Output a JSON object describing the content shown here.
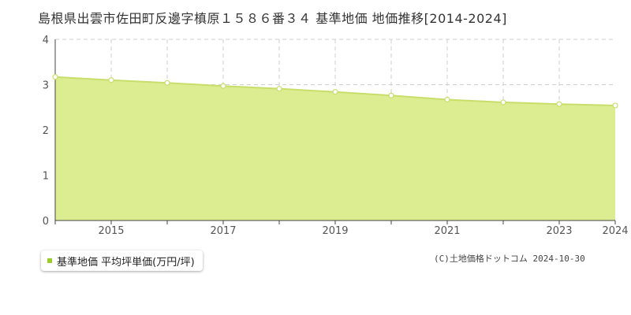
{
  "title": "島根県出雲市佐田町反邊字槙原１５８６番３４ 基準地価 地価推移[2014-2024]",
  "copyright": "(C)土地価格ドットコム 2024-10-30",
  "legend": {
    "label": "基準地価 平均坪単価(万円/坪)"
  },
  "colors": {
    "fill": "#dcec91",
    "line": "#c8de6b",
    "marker": "#9bcc2c",
    "grid": "#cfcfcf"
  },
  "chart_data": {
    "type": "area",
    "title": "島根県出雲市佐田町反邊字槙原１５８６番３４ 基準地価 地価推移[2014-2024]",
    "xlabel": "",
    "ylabel": "",
    "x": [
      2014,
      2015,
      2016,
      2017,
      2018,
      2019,
      2020,
      2021,
      2022,
      2023,
      2024
    ],
    "xticks": [
      "2015",
      "2017",
      "2019",
      "2021",
      "2023",
      "2024"
    ],
    "xtick_values": [
      2015,
      2017,
      2019,
      2021,
      2023,
      2024
    ],
    "yticks": [
      "0",
      "1",
      "2",
      "3",
      "4"
    ],
    "ylim": [
      0,
      4
    ],
    "xlim": [
      2014,
      2024
    ],
    "grid": true,
    "legend_position": "bottom-left",
    "series": [
      {
        "name": "基準地価 平均坪単価(万円/坪)",
        "values": [
          3.17,
          3.1,
          3.04,
          2.97,
          2.91,
          2.84,
          2.76,
          2.67,
          2.61,
          2.57,
          2.54
        ]
      }
    ]
  }
}
